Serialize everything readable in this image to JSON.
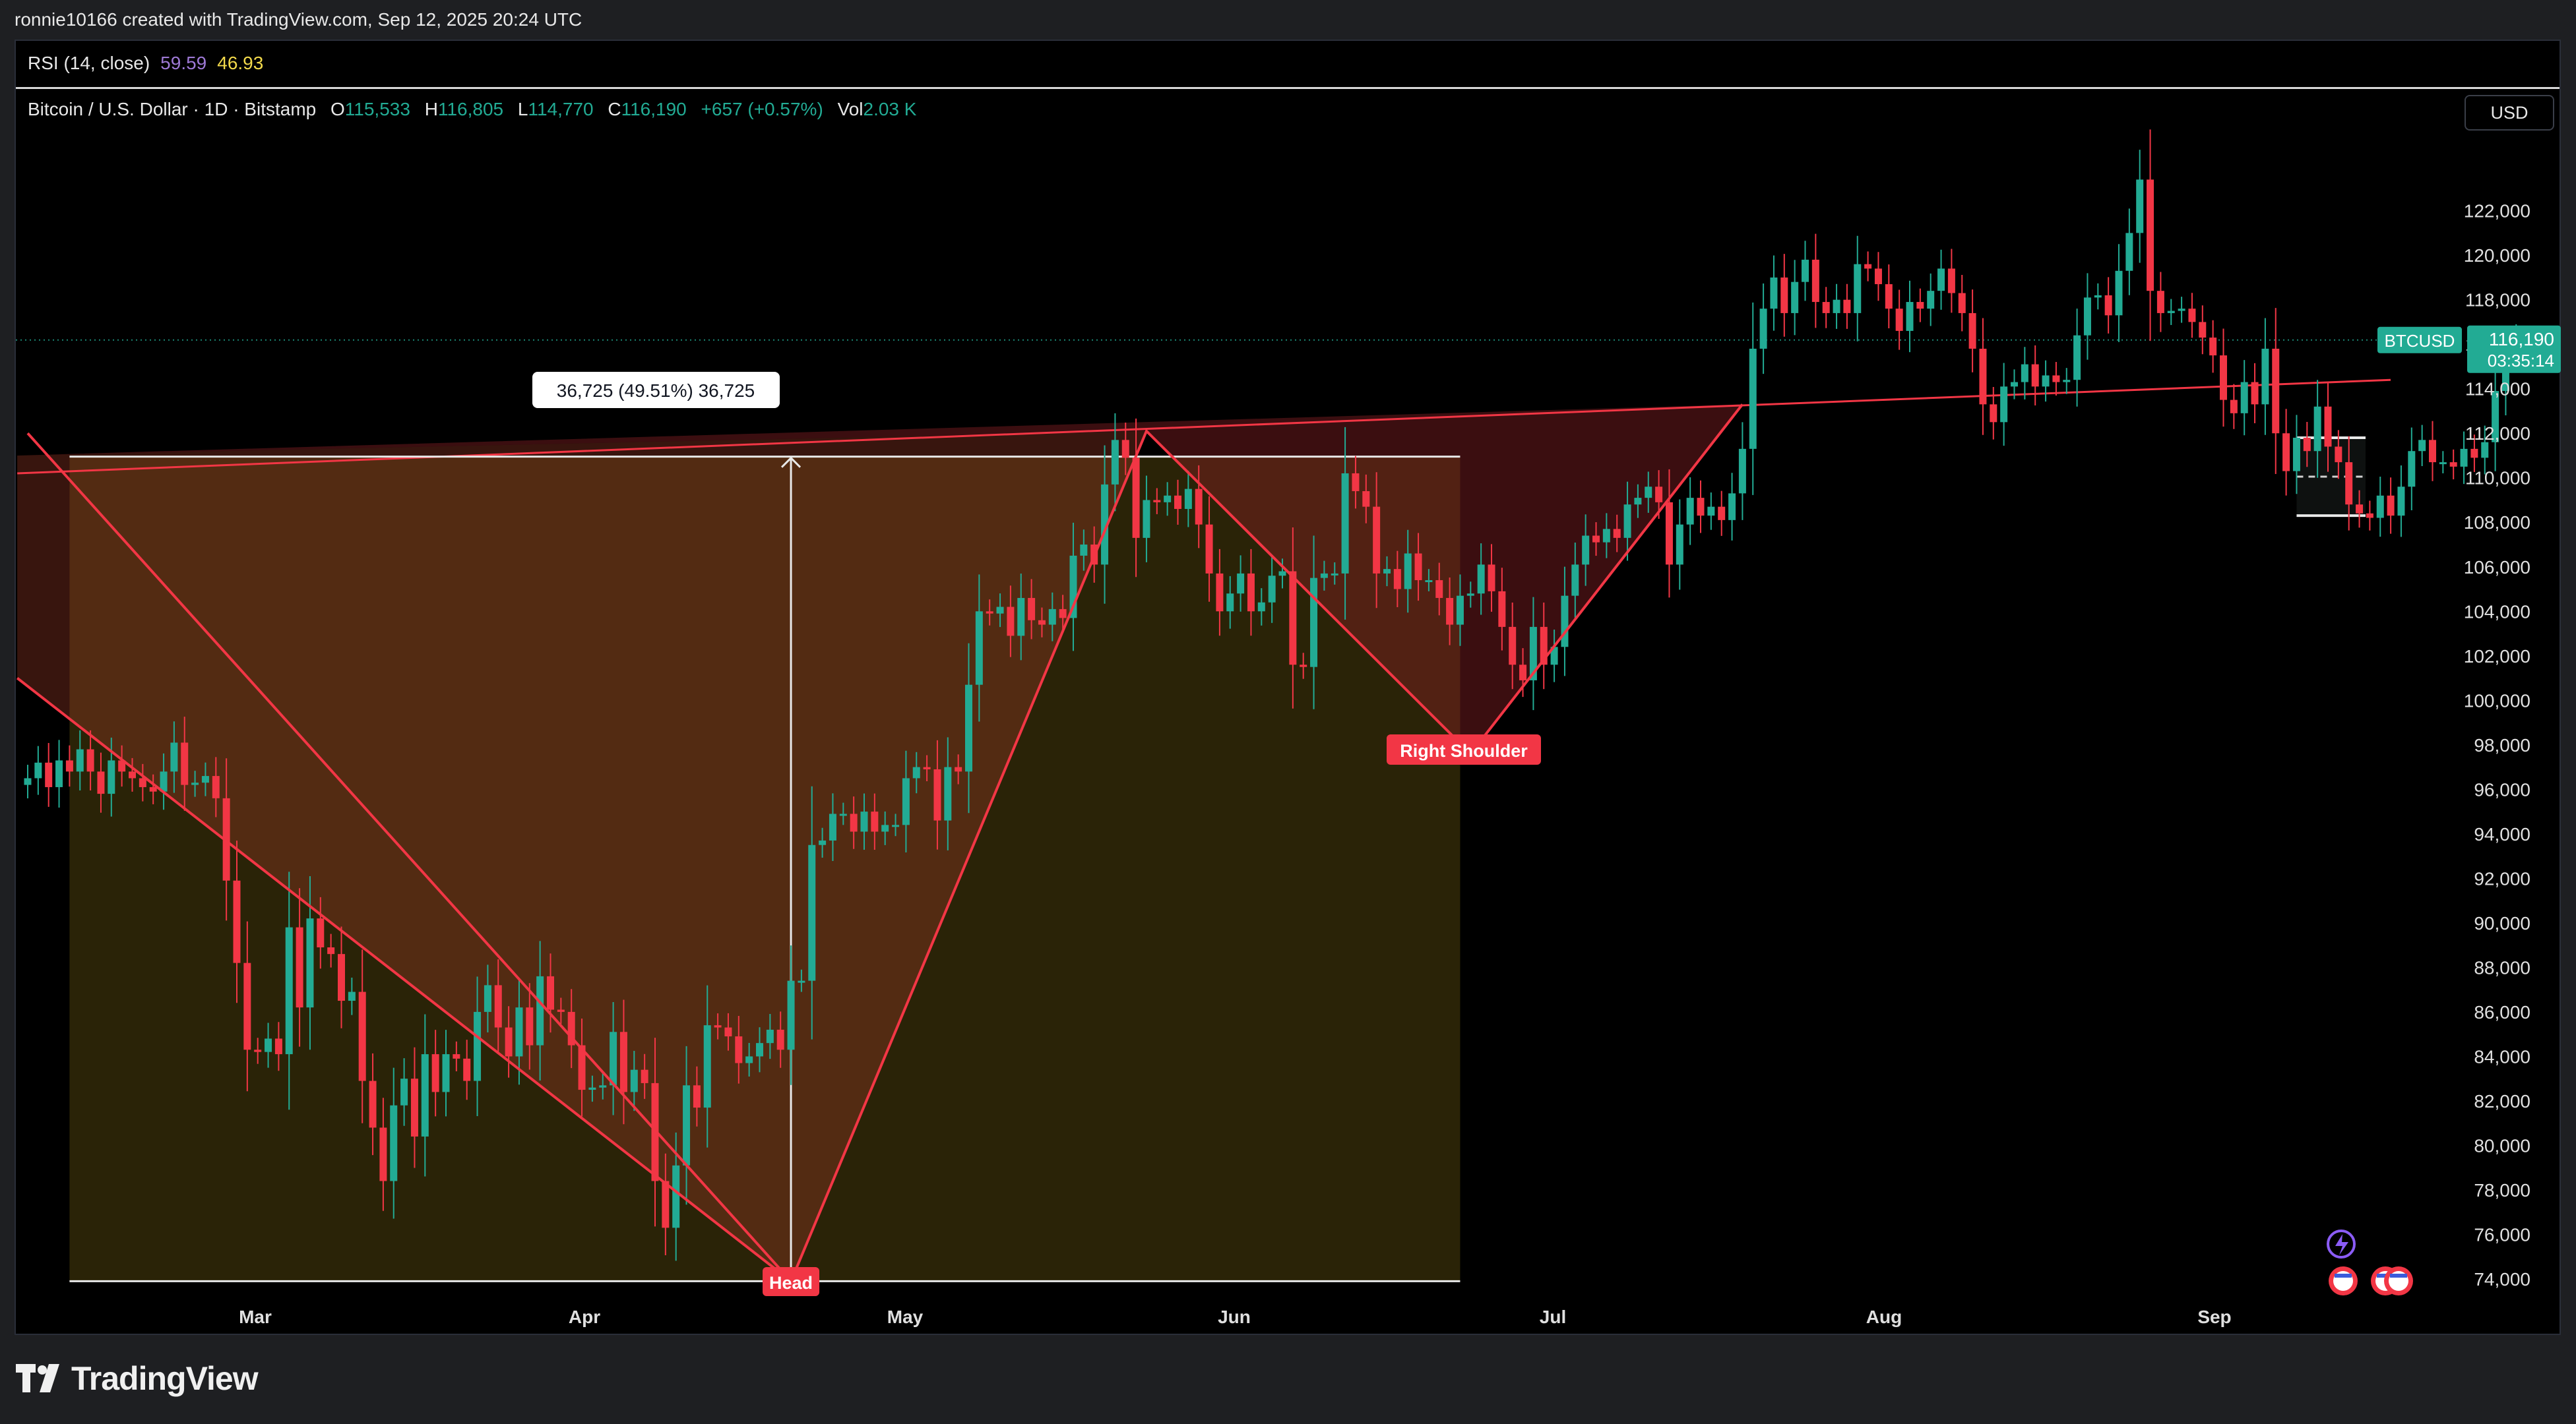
{
  "header": {
    "credit": "ronnie10166 created with TradingView.com, Sep 12, 2025 20:24 UTC"
  },
  "rsi": {
    "label": "RSI (14, close)",
    "value1": "59.59",
    "value2": "46.93"
  },
  "legend": {
    "symbol": "Bitcoin / U.S. Dollar · 1D · Bitstamp",
    "o_label": "O",
    "o": "115,533",
    "h_label": "H",
    "h": "116,805",
    "l_label": "L",
    "l": "114,770",
    "c_label": "C",
    "c": "116,190",
    "change": "+657 (+0.57%)",
    "vol_label": "Vol",
    "vol": "2.03 K"
  },
  "currency": "USD",
  "price_tag": {
    "symbol": "BTCUSD",
    "price": "116,190",
    "countdown": "03:35:14"
  },
  "annotations": {
    "measure": "36,725 (49.51%) 36,725",
    "head": "Head",
    "right_shoulder": "Right Shoulder"
  },
  "brand": "TradingView",
  "colors": {
    "up": "#22ab94",
    "down": "#f23645",
    "pattern_line": "#f23645",
    "bg": "#000000"
  },
  "chart_data": {
    "type": "candlestick",
    "title": "Bitcoin / U.S. Dollar · 1D · Bitstamp",
    "x_ticks": [
      "Mar",
      "Apr",
      "May",
      "Jun",
      "Jul",
      "Aug",
      "Sep"
    ],
    "y_ticks": [
      74000,
      76000,
      78000,
      80000,
      82000,
      84000,
      86000,
      88000,
      90000,
      92000,
      94000,
      96000,
      98000,
      100000,
      102000,
      104000,
      106000,
      108000,
      110000,
      112000,
      114000,
      116000,
      118000,
      120000,
      122000
    ],
    "ylim": [
      73200,
      124300
    ],
    "last_close": 116190,
    "closes": [
      96500,
      97200,
      96100,
      97300,
      96800,
      97800,
      96800,
      95800,
      97300,
      96800,
      96500,
      96100,
      95900,
      96800,
      98100,
      96200,
      96300,
      96600,
      95600,
      91900,
      88200,
      84300,
      84200,
      84800,
      84100,
      89800,
      86200,
      90200,
      88900,
      88600,
      86500,
      86900,
      82900,
      80800,
      78400,
      81800,
      83000,
      80400,
      84100,
      82400,
      84100,
      83900,
      82900,
      86000,
      87200,
      85300,
      84000,
      86200,
      84500,
      87600,
      86100,
      86000,
      84500,
      82500,
      82600,
      82700,
      85100,
      82400,
      83400,
      82800,
      78400,
      76300,
      79100,
      82700,
      81700,
      85400,
      85300,
      84900,
      83700,
      84000,
      84600,
      85200,
      84300,
      87400,
      87400,
      93500,
      93700,
      94900,
      94900,
      94100,
      95000,
      94100,
      94400,
      94400,
      96500,
      97000,
      96900,
      94600,
      97000,
      96800,
      100700,
      104000,
      103900,
      104200,
      102900,
      104600,
      103600,
      103400,
      104100,
      103700,
      106500,
      107000,
      106100,
      109700,
      111700,
      110900,
      107300,
      109000,
      108900,
      109200,
      108600,
      109500,
      107900,
      105700,
      104000,
      104800,
      105700,
      104000,
      104400,
      105600,
      105800,
      101600,
      101500,
      105500,
      105700,
      105700,
      110200,
      109400,
      108700,
      105700,
      105900,
      105000,
      106600,
      105400,
      105400,
      104600,
      103400,
      104700,
      104800,
      106100,
      104900,
      103300,
      101600,
      100900,
      103300,
      101600,
      102400,
      104700,
      106100,
      107400,
      107100,
      107700,
      107300,
      108800,
      109100,
      109600,
      108900,
      106100,
      107900,
      109100,
      108300,
      108700,
      108100,
      109300,
      111300,
      115800,
      117600,
      119000,
      117400,
      118800,
      119800,
      117900,
      117400,
      118000,
      117400,
      119600,
      119400,
      118700,
      117600,
      116600,
      117900,
      117600,
      118400,
      119400,
      118300,
      117400,
      115800,
      113300,
      112500,
      114100,
      114300,
      115100,
      114100,
      114600,
      114300,
      114400,
      116400,
      118100,
      118200,
      117300,
      119300,
      121000,
      123400,
      118400,
      117400,
      117500,
      117600,
      117000,
      116300,
      115500,
      113500,
      112900,
      114300,
      113300,
      115800,
      112000,
      110300,
      111800,
      111200,
      113200,
      111400,
      110700,
      108800,
      108400,
      108200,
      109200,
      108300,
      109600,
      111200,
      111700,
      110700,
      110700,
      110500,
      111300,
      110900,
      111600,
      113900,
      115600,
      116190
    ]
  }
}
